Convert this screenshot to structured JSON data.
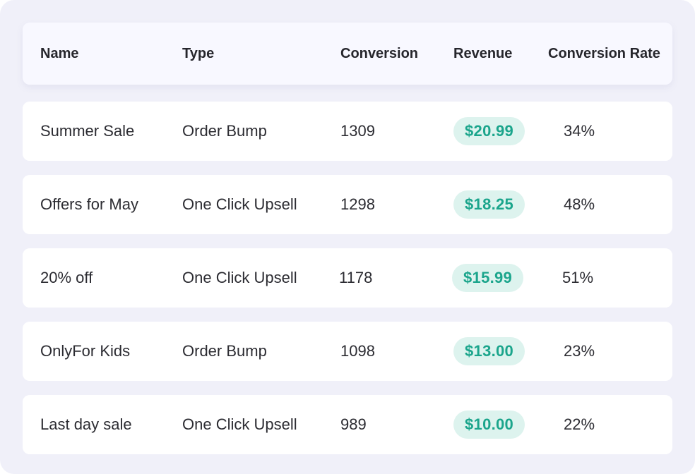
{
  "table": {
    "columns": {
      "name": "Name",
      "type": "Type",
      "conversion": "Conversion",
      "revenue": "Revenue",
      "rate": "Conversion Rate"
    },
    "rows": [
      {
        "name": "Summer Sale",
        "type": "Order Bump",
        "conversion": "1309",
        "revenue": "$20.99",
        "rate": "34%"
      },
      {
        "name": "Offers for May",
        "type": "One Click Upsell",
        "conversion": "1298",
        "revenue": "$18.25",
        "rate": "48%"
      },
      {
        "name": "20% off",
        "type": "One Click Upsell",
        "conversion": "1178",
        "revenue": "$15.99",
        "rate": "51%"
      },
      {
        "name": "OnlyFor Kids",
        "type": "Order Bump",
        "conversion": "1098",
        "revenue": "$13.00",
        "rate": "23%"
      },
      {
        "name": "Last day sale",
        "type": "One Click Upsell",
        "conversion": "989",
        "revenue": "$10.00",
        "rate": "22%"
      }
    ]
  },
  "colors": {
    "panel_bg": "#f0f0f9",
    "header_bg": "#f8f8ff",
    "row_bg": "#ffffff",
    "revenue_pill_bg": "#ddf3ee",
    "revenue_text": "#1ba58c"
  }
}
